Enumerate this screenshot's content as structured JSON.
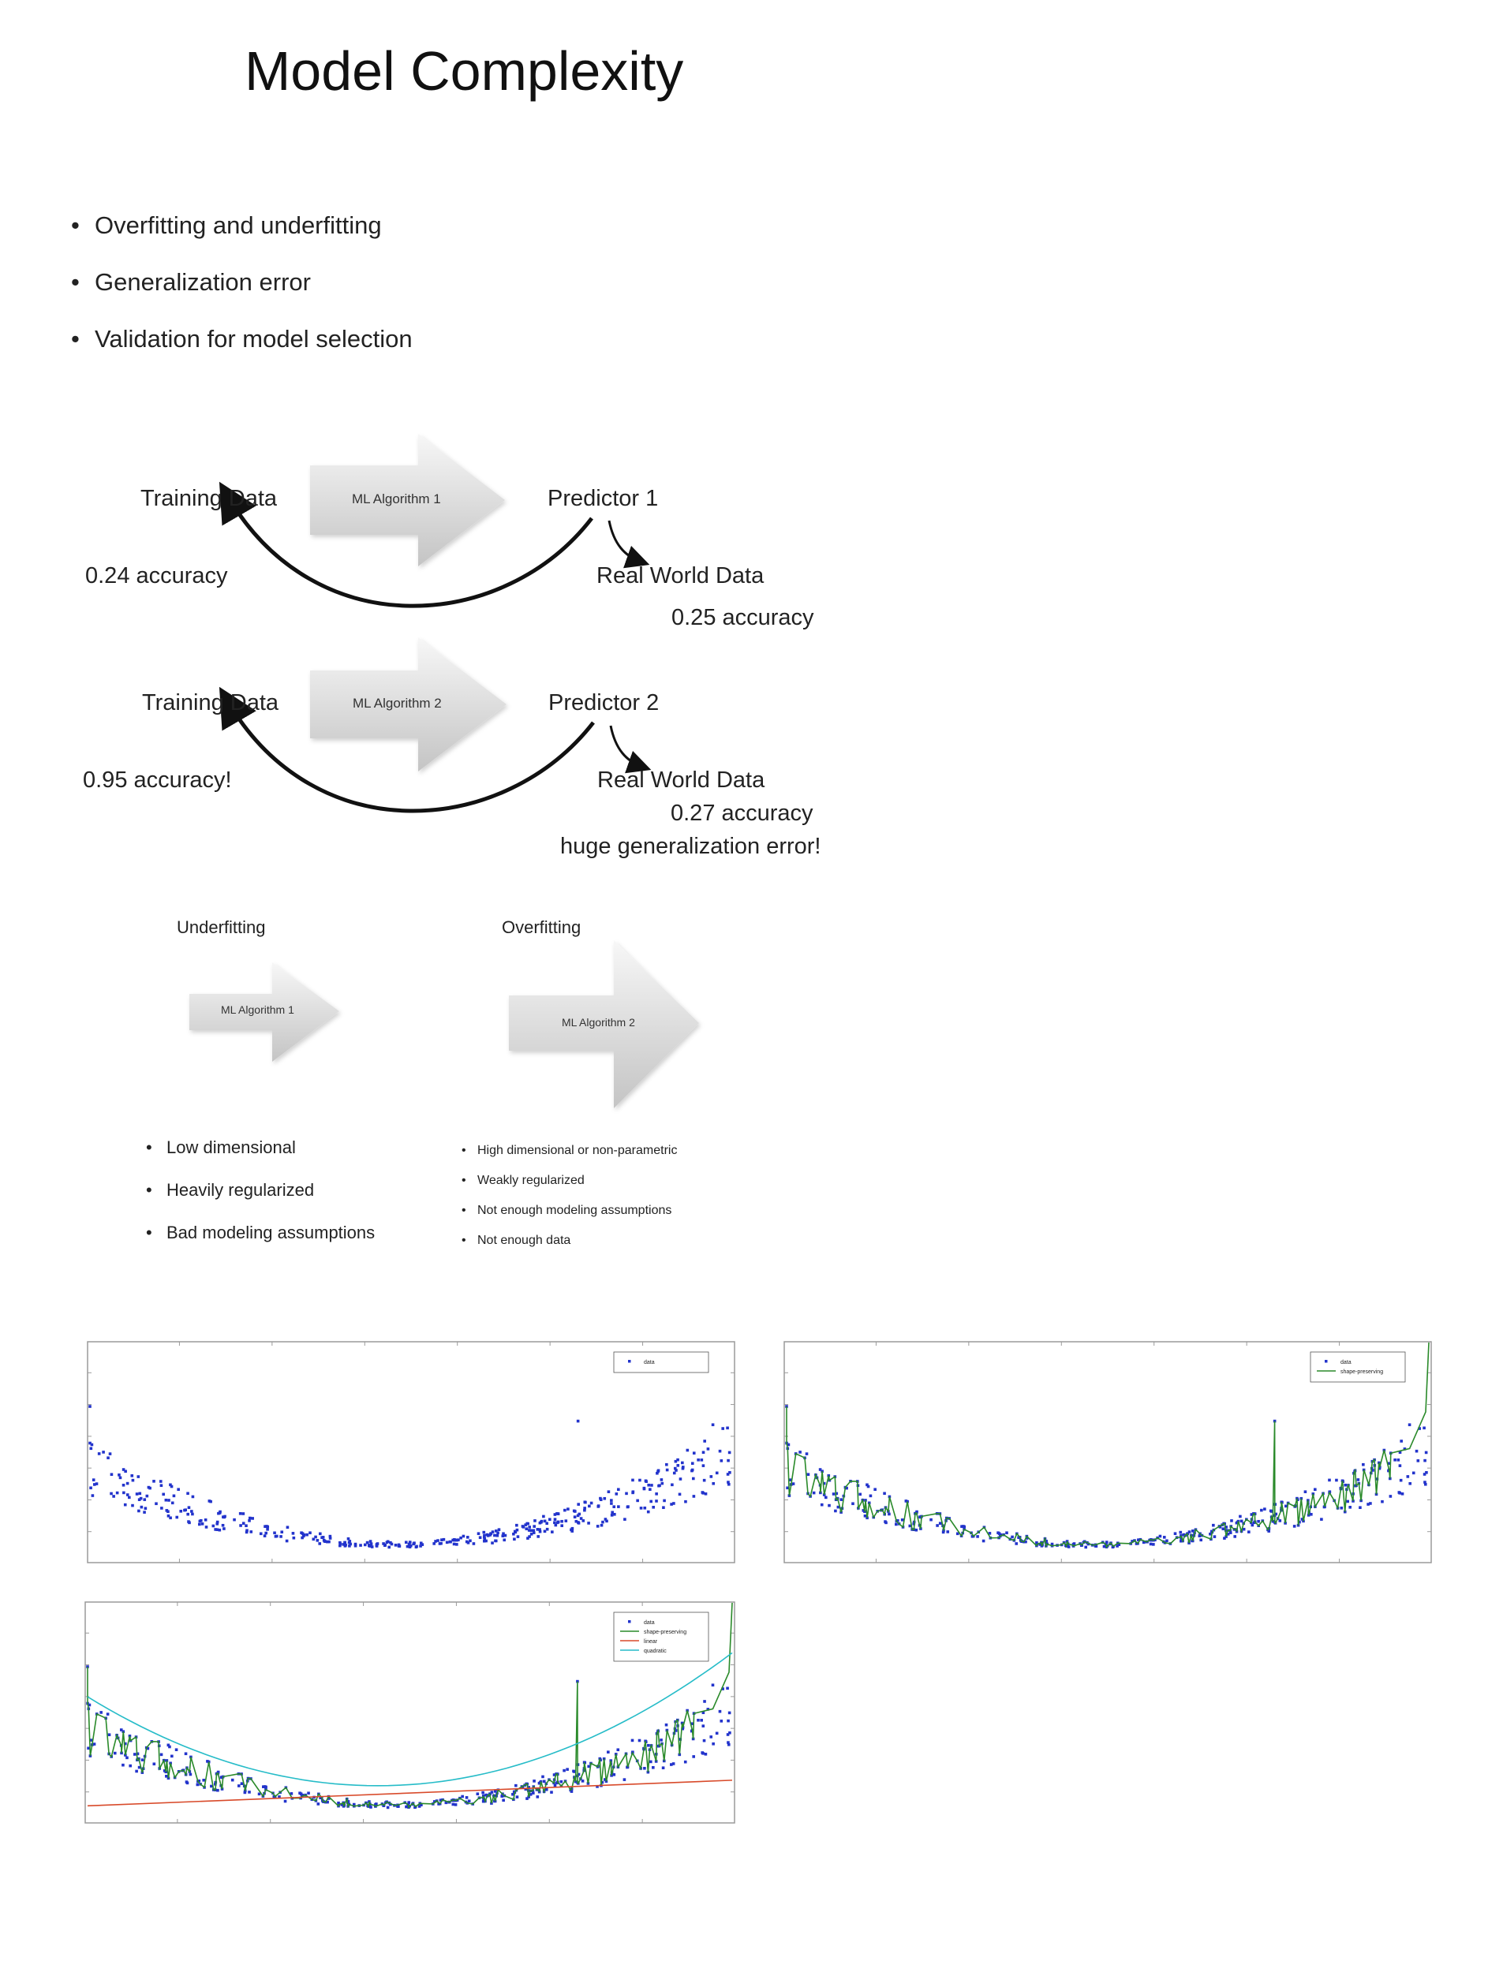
{
  "title": "Model Complexity",
  "bullets": [
    "Overfitting and underfitting",
    "Generalization error",
    "Validation for model selection"
  ],
  "diagram1": {
    "training": "Training Data",
    "algorithm": "ML Algorithm 1",
    "predictor": "Predictor 1",
    "train_acc": "0.24 accuracy",
    "real_world": "Real World Data",
    "real_acc": "0.25 accuracy"
  },
  "diagram2": {
    "training": "Training Data",
    "algorithm": "ML Algorithm 2",
    "predictor": "Predictor 2",
    "train_acc": "0.95 accuracy!",
    "real_world": "Real World Data",
    "real_acc": "0.27 accuracy",
    "note": "huge generalization error!"
  },
  "comparison": {
    "under_label": "Underfitting",
    "over_label": "Overfitting",
    "under_alg": "ML Algorithm 1",
    "over_alg": "ML Algorithm 2",
    "under_points": [
      "Low dimensional",
      "Heavily regularized",
      "Bad modeling assumptions"
    ],
    "over_points": [
      "High dimensional or non-parametric",
      "Weakly regularized",
      "Not enough modeling assumptions",
      "Not enough data"
    ]
  },
  "colors": {
    "data": "#2233cc",
    "shape_preserving": "#2a8a2a",
    "linear": "#d84a2a",
    "quadratic": "#26bcc8"
  },
  "chart_data": [
    {
      "type": "scatter",
      "legend": [
        "data"
      ],
      "legend_position": "top-right",
      "grid": false,
      "note": "U-shaped scatter: dense cluster near the bottom of the x range middle, sparse high points at both ends"
    },
    {
      "type": "line",
      "legend": [
        "data",
        "shape-preserving"
      ],
      "legend_position": "top-right",
      "grid": false
    },
    {
      "type": "line",
      "legend": [
        "data",
        "shape-preserving",
        "linear",
        "quadratic"
      ],
      "legend_position": "top-right",
      "grid": false
    }
  ]
}
